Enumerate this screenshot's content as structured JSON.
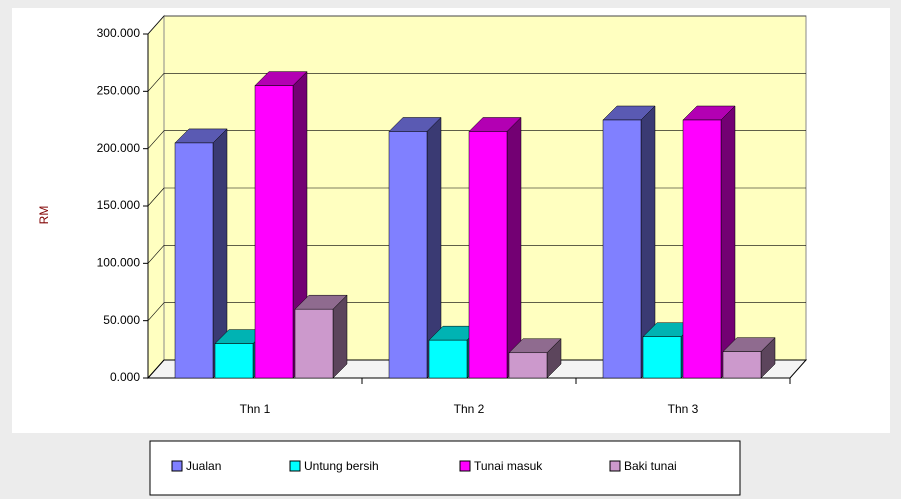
{
  "chart_data": {
    "type": "bar3d",
    "y_label": "RM",
    "categories": [
      "Thn 1",
      "Thn 2",
      "Thn 3"
    ],
    "series": [
      {
        "name": "Jualan",
        "color": "#8080ff",
        "values": [
          205000,
          215000,
          225000
        ]
      },
      {
        "name": "Untung bersih",
        "color": "#00ffff",
        "values": [
          30000,
          33000,
          36000
        ]
      },
      {
        "name": "Tunai masuk",
        "color": "#ff00ff",
        "values": [
          255000,
          215000,
          225000
        ]
      },
      {
        "name": "Baki tunai",
        "color": "#cc99cc",
        "values": [
          60000,
          22000,
          23000
        ]
      }
    ],
    "ylim": [
      0,
      300000
    ],
    "yticks": [
      {
        "value": 0,
        "label": "0.000"
      },
      {
        "value": 50000,
        "label": "50.000"
      },
      {
        "value": 100000,
        "label": "100.000"
      },
      {
        "value": 150000,
        "label": "150.000"
      },
      {
        "value": 200000,
        "label": "200.000"
      },
      {
        "value": 250000,
        "label": "250.000"
      },
      {
        "value": 300000,
        "label": "300.000"
      }
    ],
    "grid": true
  }
}
